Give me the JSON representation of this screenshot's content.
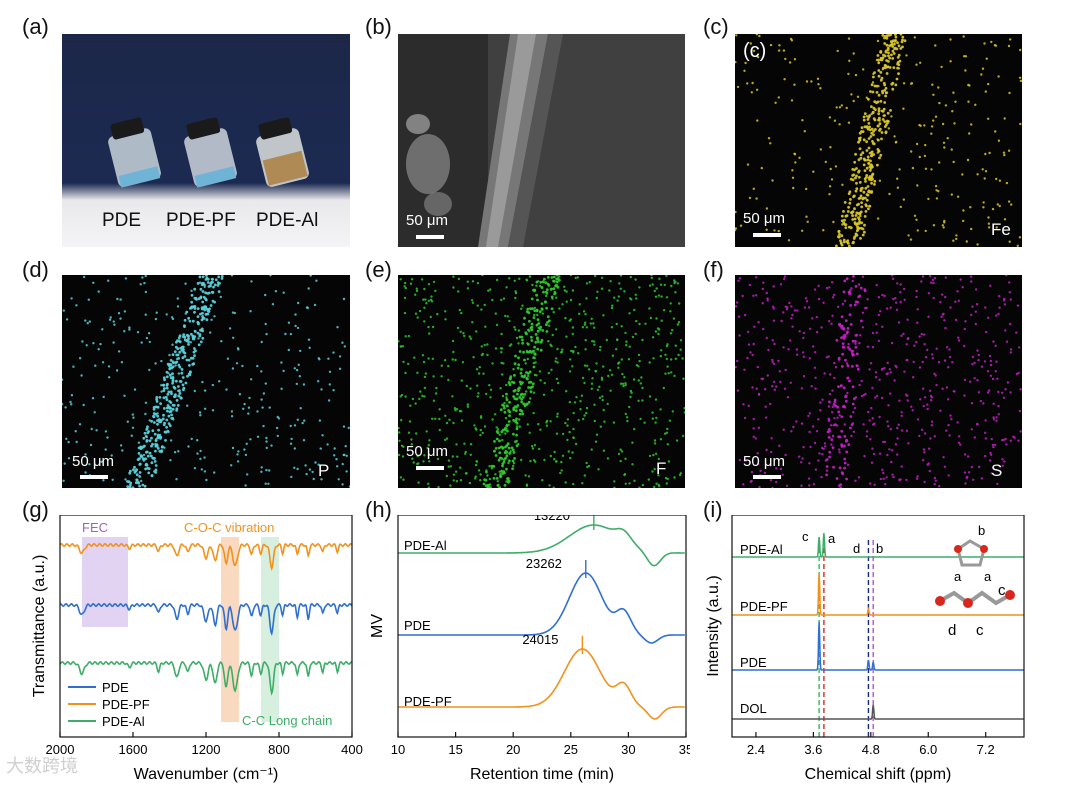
{
  "panel_labels": {
    "a": "(a)",
    "b": "(b)",
    "c": "(c)",
    "d": "(d)",
    "e": "(e)",
    "f": "(f)",
    "g": "(g)",
    "h": "(h)",
    "i": "(i)",
    "c_inset": "(c)"
  },
  "photo": {
    "vials": [
      "PDE",
      "PDE-PF",
      "PDE-Al"
    ]
  },
  "scale_bar": "50 μm",
  "maps": {
    "c": {
      "element": "Fe",
      "color": "#d8c52a"
    },
    "d": {
      "element": "P",
      "color": "#59d1db"
    },
    "e": {
      "element": "F",
      "color": "#2fc92f"
    },
    "f": {
      "element": "S",
      "color": "#c21fc4"
    }
  },
  "watermark": "大数跨境",
  "chart_data": [
    {
      "type": "line",
      "panel": "g",
      "xlabel": "Wavenumber (cm⁻¹)",
      "ylabel": "Transmittance (a.u.)",
      "xlim": [
        2000,
        400
      ],
      "xticks": [
        "2000",
        "1600",
        "1200",
        "800",
        "400"
      ],
      "series": [
        {
          "name": "PDE",
          "color": "#2f6fd0"
        },
        {
          "name": "PDE-PF",
          "color": "#f2921c"
        },
        {
          "name": "PDE-Al",
          "color": "#3dad68"
        }
      ],
      "annotations": [
        {
          "text": "FEC",
          "color": "#a45ecb"
        },
        {
          "text": "C-O-C vibration",
          "color": "#f2921c"
        },
        {
          "text": "C-C Long chain",
          "color": "#3dad68"
        }
      ]
    },
    {
      "type": "line",
      "panel": "h",
      "xlabel": "Retention time (min)",
      "ylabel": "MV",
      "xlim": [
        10,
        35
      ],
      "xticks": [
        "10",
        "15",
        "20",
        "25",
        "30",
        "35"
      ],
      "series": [
        {
          "name": "PDE-Al",
          "color": "#3dad68",
          "peak_x": 27,
          "peak_label": "13220"
        },
        {
          "name": "PDE",
          "color": "#2f6fd0",
          "peak_x": 26.3,
          "peak_label": "23262"
        },
        {
          "name": "PDE-PF",
          "color": "#f2921c",
          "peak_x": 26,
          "peak_label": "24015"
        }
      ]
    },
    {
      "type": "line",
      "panel": "i",
      "xlabel": "Chemical shift (ppm)",
      "ylabel": "Intensity (a.u.)",
      "xlim": [
        1.9,
        8.0
      ],
      "xticks": [
        "2.4",
        "3.6",
        "4.8",
        "6.0",
        "7.2"
      ],
      "series": [
        {
          "name": "PDE-Al",
          "color": "#3dad68"
        },
        {
          "name": "PDE-PF",
          "color": "#f2921c"
        },
        {
          "name": "PDE",
          "color": "#2f6fd0"
        },
        {
          "name": "DOL",
          "color": "#555555"
        }
      ],
      "peak_labels": [
        "c",
        "a",
        "d",
        "b"
      ],
      "molecule_labels": [
        "b",
        "a",
        "a",
        "c",
        "d",
        "c"
      ]
    }
  ]
}
